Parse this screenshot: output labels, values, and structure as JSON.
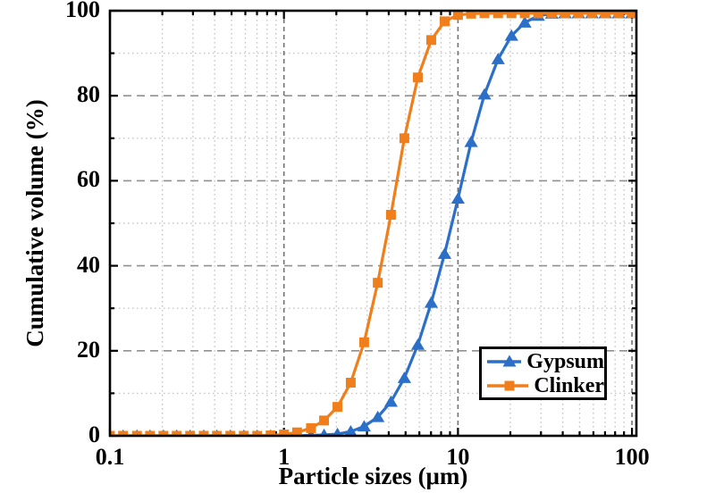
{
  "figure": {
    "background": "#ffffff",
    "axis_color": "#000000"
  },
  "chart_data": {
    "type": "line",
    "title": "",
    "xlabel": "Particle sizes (μm)",
    "ylabel": "Cumulative volume (%)",
    "x_scale": "log",
    "xlim": [
      0.1,
      106
    ],
    "ylim": [
      0,
      100
    ],
    "x_ticks": [
      0.1,
      1,
      10,
      100
    ],
    "x_tick_labels": [
      "0.1",
      "1",
      "10",
      "100"
    ],
    "y_ticks": [
      0,
      20,
      40,
      60,
      80,
      100
    ],
    "y_tick_labels": [
      "0",
      "20",
      "40",
      "60",
      "80",
      "100"
    ],
    "y_ticks_minor": [
      10,
      30,
      50,
      70,
      90
    ],
    "grid": {
      "major_style": "dashed",
      "minor_style": "dotted",
      "major_color": "#909090",
      "minor_color": "#c8c8c8",
      "decade_line_color": "#737373"
    },
    "legend": {
      "position": "lower-right",
      "border_color": "#000000",
      "background": "#ffffff"
    },
    "x": [
      0.1,
      0.119,
      0.143,
      0.17,
      0.203,
      0.242,
      0.289,
      0.346,
      0.412,
      0.492,
      0.588,
      0.702,
      0.838,
      1.0,
      1.19,
      1.43,
      1.7,
      2.03,
      2.42,
      2.89,
      3.46,
      4.12,
      4.92,
      5.88,
      7.02,
      8.38,
      10.0,
      11.9,
      14.2,
      17.0,
      20.3,
      24.2,
      28.9,
      34.6,
      41.2,
      49.2,
      58.8,
      70.2,
      83.8,
      100.0
    ],
    "series": [
      {
        "name": "Gypsum",
        "color": "#2B6FC9",
        "marker": "triangle",
        "values": [
          0,
          0,
          0,
          0,
          0,
          0,
          0,
          0,
          0,
          0,
          0,
          0,
          0,
          0,
          0,
          0.1,
          0.2,
          0.4,
          1.0,
          2.2,
          4.4,
          8.0,
          13.6,
          21.4,
          31.3,
          42.8,
          55.8,
          69.1,
          80.3,
          88.6,
          94.1,
          97.2,
          98.8,
          99.3,
          99.4,
          99.4,
          99.4,
          99.4,
          99.4,
          99.4
        ]
      },
      {
        "name": "Clinker",
        "color": "#F07E1A",
        "marker": "square",
        "values": [
          0,
          0,
          0,
          0,
          0,
          0,
          0,
          0,
          0,
          0,
          0,
          0,
          0.1,
          0.3,
          0.8,
          1.8,
          3.6,
          6.8,
          12.5,
          22.0,
          36.0,
          52.0,
          70.0,
          84.3,
          93.1,
          97.5,
          99.0,
          99.3,
          99.4,
          99.4,
          99.4,
          99.4,
          99.4,
          99.4,
          99.4,
          99.4,
          99.4,
          99.4,
          99.4,
          99.4
        ]
      }
    ]
  }
}
